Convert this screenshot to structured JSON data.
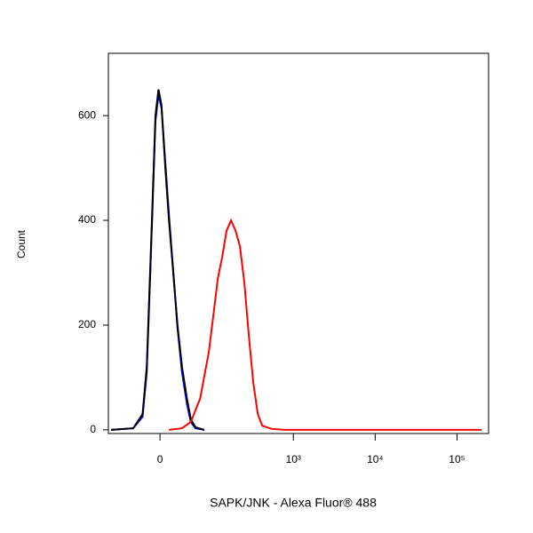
{
  "chart_data": {
    "type": "line",
    "x_label": "SAPK/JNK - Alexa Fluor® 488",
    "y_label": "Count",
    "xscale": "asinh",
    "xlim": [
      -95,
      243000
    ],
    "ylim": [
      -7,
      719
    ],
    "xticks": [
      0,
      {
        "value": 1000,
        "label": "10³"
      },
      {
        "value": 10000,
        "label": "10⁴"
      },
      {
        "value": 100000,
        "label": "10⁵"
      }
    ],
    "yticks": [
      0,
      200,
      400,
      600
    ],
    "series": [
      {
        "color": "#0000ff",
        "x": [
          -87,
          -39,
          -24,
          -18,
          -12,
          -6,
          -2,
          2,
          7,
          12,
          18,
          24,
          31,
          39,
          46,
          55,
          75
        ],
        "values": [
          0,
          3,
          25,
          110,
          340,
          590,
          640,
          615,
          510,
          410,
          300,
          195,
          110,
          50,
          15,
          3,
          0
        ]
      },
      {
        "color": "#000000",
        "x": [
          -87,
          -39,
          -24,
          -18,
          -12,
          -6,
          -2,
          2,
          7,
          12,
          18,
          24,
          31,
          39,
          46,
          55,
          75
        ],
        "values": [
          0,
          3,
          30,
          120,
          350,
          600,
          650,
          620,
          500,
          400,
          300,
          200,
          120,
          60,
          20,
          5,
          0
        ]
      },
      {
        "color": "#ff0000",
        "x": [
          12,
          31,
          46,
          65,
          87,
          115,
          131,
          149,
          170,
          194,
          220,
          250,
          284,
          322,
          366,
          416,
          535,
          777,
          200000
        ],
        "values": [
          0,
          3,
          15,
          60,
          150,
          290,
          330,
          380,
          400,
          380,
          350,
          280,
          180,
          90,
          30,
          8,
          2,
          0,
          0
        ]
      }
    ]
  }
}
